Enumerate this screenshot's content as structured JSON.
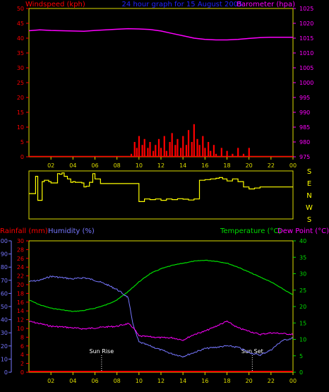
{
  "header": {
    "left": "Windspeed (kph)",
    "center": "24 hour graph for   15 August 2005",
    "right": "Barometer (hpa)"
  },
  "bottom_header": {
    "rainfall": "Rainfall (mm)",
    "humidity": "Humidity (%)",
    "temperature": "Temperature (°C)",
    "dewpoint": "Dew Point (°C)"
  },
  "annotations": {
    "sunrise": "Sun Rise",
    "sunset": "Sun Set"
  },
  "compass": [
    "S",
    "E",
    "N",
    "W",
    "S"
  ],
  "colors": {
    "wind": "#ff0000",
    "barometer": "#ff00ff",
    "wind_dir": "#ffff00",
    "temperature": "#00dd00",
    "humidity": "#7777ff",
    "dewpoint": "#ff00ff",
    "rainfall": "#ff0000",
    "axis_frame": "#dddd00",
    "header_center": "#2222ff"
  },
  "chart_data": [
    {
      "type": "line",
      "panel": "wind-pressure",
      "x_ticks": [
        "02",
        "04",
        "06",
        "08",
        "10",
        "12",
        "14",
        "16",
        "18",
        "20",
        "22",
        "00"
      ],
      "yleft": {
        "label": "Windspeed (kph)",
        "ticks": [
          0,
          5,
          10,
          15,
          20,
          25,
          30,
          35,
          40,
          45,
          50
        ],
        "ylim": [
          0,
          50
        ]
      },
      "yright": {
        "label": "Barometer (hpa)",
        "ticks": [
          975,
          980,
          985,
          990,
          995,
          1000,
          1005,
          1010,
          1015,
          1020,
          1025
        ],
        "ylim": [
          975,
          1025
        ]
      },
      "series": [
        {
          "name": "Barometer (hpa)",
          "axis": "right",
          "x": [
            0,
            1,
            2,
            3,
            4,
            5,
            6,
            7,
            8,
            9,
            10,
            11,
            12,
            13,
            14,
            15,
            16,
            17,
            18,
            19,
            20,
            21,
            22,
            23,
            24
          ],
          "values": [
            1017.5,
            1017.8,
            1017.6,
            1017.5,
            1017.4,
            1017.3,
            1017.6,
            1017.8,
            1018.0,
            1018.2,
            1018.1,
            1017.9,
            1017.4,
            1016.6,
            1015.8,
            1015.0,
            1014.6,
            1014.4,
            1014.4,
            1014.6,
            1014.9,
            1015.2,
            1015.3,
            1015.3,
            1015.3
          ]
        },
        {
          "name": "Windspeed (kph)",
          "axis": "left",
          "type": "bar",
          "x": [
            9.3,
            9.6,
            9.8,
            10.0,
            10.3,
            10.5,
            10.8,
            11.0,
            11.3,
            11.5,
            11.8,
            12.0,
            12.3,
            12.5,
            12.8,
            13.0,
            13.3,
            13.5,
            13.8,
            14.0,
            14.3,
            14.5,
            14.8,
            15.0,
            15.3,
            15.5,
            15.8,
            16.0,
            16.3,
            16.5,
            16.8,
            17.0,
            17.5,
            18.0,
            18.5,
            19.0,
            19.5,
            20.0
          ],
          "values": [
            1,
            5,
            3,
            7,
            4,
            6,
            3,
            5,
            2,
            4,
            6,
            3,
            7,
            2,
            5,
            8,
            4,
            6,
            3,
            7,
            4,
            9,
            5,
            11,
            6,
            4,
            7,
            3,
            5,
            2,
            4,
            1,
            3,
            2,
            1,
            3,
            1,
            3
          ]
        }
      ]
    },
    {
      "type": "line",
      "panel": "wind-direction",
      "ylabels": [
        "S",
        "E",
        "N",
        "W",
        "S"
      ],
      "series": [
        {
          "name": "Wind direction",
          "x": [
            0,
            0.3,
            0.6,
            0.8,
            1.2,
            1.4,
            1.8,
            2.0,
            2.3,
            2.6,
            2.8,
            3.0,
            3.2,
            3.5,
            3.8,
            4.0,
            4.2,
            4.5,
            4.8,
            5.0,
            5.2,
            5.5,
            5.8,
            6.0,
            6.5,
            7.0,
            7.5,
            8.0,
            8.5,
            9.0,
            9.5,
            10.0,
            10.5,
            11.0,
            11.5,
            12.0,
            12.5,
            13.0,
            13.5,
            14.0,
            14.5,
            15.0,
            15.5,
            16.0,
            16.5,
            17.0,
            17.3,
            17.6,
            18.0,
            18.5,
            19.0,
            19.5,
            20.0,
            20.5,
            21.0,
            22.0,
            23.0,
            24.0
          ],
          "values": [
            190,
            190,
            320,
            140,
            280,
            290,
            280,
            270,
            270,
            340,
            335,
            345,
            320,
            300,
            275,
            280,
            275,
            275,
            270,
            240,
            245,
            275,
            340,
            300,
            265,
            265,
            265,
            265,
            265,
            265,
            265,
            130,
            150,
            145,
            150,
            140,
            150,
            145,
            152,
            148,
            142,
            150,
            290,
            295,
            300,
            305,
            310,
            300,
            285,
            300,
            280,
            240,
            225,
            232,
            240,
            240,
            240,
            240
          ]
        }
      ]
    },
    {
      "type": "line",
      "panel": "temp-humidity",
      "x_ticks": [
        "02",
        "04",
        "06",
        "08",
        "10",
        "12",
        "14",
        "16",
        "18",
        "20",
        "22",
        "00"
      ],
      "y_humidity": {
        "label": "Humidity (%)",
        "ticks": [
          0,
          10,
          20,
          30,
          40,
          50,
          60,
          70,
          80,
          90,
          100
        ],
        "ylim": [
          0,
          100
        ]
      },
      "y_rainfall": {
        "label": "Rainfall (mm)",
        "ticks": [
          0,
          2,
          4,
          6,
          8,
          10,
          12,
          14,
          16,
          18,
          20,
          22,
          24,
          26,
          28,
          30
        ],
        "ylim": [
          0,
          30
        ]
      },
      "y_temperature": {
        "label": "Temperature (°C)",
        "ticks": [
          0,
          5,
          10,
          15,
          20,
          25,
          30,
          35,
          40
        ],
        "ylim": [
          0,
          40
        ]
      },
      "series": [
        {
          "name": "Temperature (°C)",
          "axis": "right",
          "x": [
            0,
            1,
            2,
            3,
            4,
            5,
            6,
            7,
            8,
            9,
            10,
            11,
            12,
            13,
            14,
            15,
            16,
            17,
            18,
            19,
            20,
            21,
            22,
            23,
            24
          ],
          "values": [
            22.0,
            20.5,
            19.5,
            19.0,
            18.5,
            18.8,
            19.5,
            20.5,
            22.0,
            24.5,
            27.5,
            30.0,
            31.5,
            32.5,
            33.2,
            33.8,
            34.1,
            33.8,
            33.2,
            32.0,
            30.5,
            29.0,
            27.5,
            25.5,
            23.5
          ]
        },
        {
          "name": "Humidity (%)",
          "axis": "humidity",
          "x": [
            0,
            1,
            2,
            3,
            4,
            5,
            6,
            7,
            8,
            9,
            9.5,
            10,
            11,
            12,
            13,
            14,
            15,
            16,
            17,
            18,
            19,
            20,
            21,
            22,
            23,
            24
          ],
          "values": [
            69,
            70,
            73,
            72,
            71,
            72,
            70,
            67,
            63,
            57,
            35,
            23,
            20,
            17,
            14,
            12,
            15,
            18,
            19,
            20,
            19,
            15,
            13,
            17,
            24,
            26
          ]
        },
        {
          "name": "Dew Point (°C)",
          "axis": "right",
          "x": [
            0,
            1,
            2,
            3,
            4,
            5,
            6,
            7,
            8,
            9,
            9.5,
            10,
            11,
            12,
            13,
            14,
            15,
            16,
            17,
            18,
            19,
            20,
            21,
            22,
            23,
            24
          ],
          "values": [
            15.5,
            14.8,
            14.0,
            13.8,
            13.5,
            13.2,
            13.5,
            13.8,
            14.0,
            14.8,
            13.5,
            11.0,
            10.8,
            10.5,
            10.5,
            9.8,
            11.5,
            12.5,
            14.0,
            15.5,
            13.5,
            12.5,
            11.5,
            12.0,
            11.8,
            11.5
          ]
        },
        {
          "name": "Rainfall (mm)",
          "axis": "rainfall",
          "x": [
            0,
            24
          ],
          "values": [
            0,
            0
          ]
        }
      ],
      "annotations": [
        {
          "label": "Sun Rise",
          "x": 6.6
        },
        {
          "label": "Sun Set",
          "x": 20.3
        }
      ]
    }
  ]
}
